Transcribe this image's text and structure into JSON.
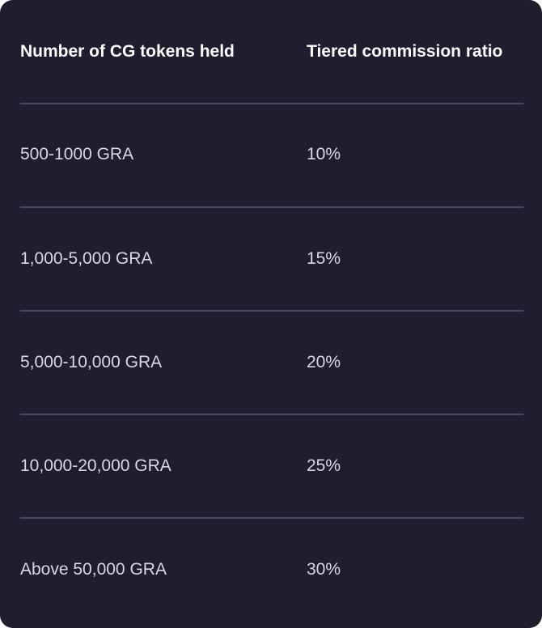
{
  "table": {
    "headers": {
      "tokens": "Number of CG tokens held",
      "ratio": "Tiered commission ratio"
    },
    "rows": [
      {
        "tokens": "500-1000 GRA",
        "ratio": "10%"
      },
      {
        "tokens": "1,000-5,000 GRA",
        "ratio": "15%"
      },
      {
        "tokens": "5,000-10,000 GRA",
        "ratio": "20%"
      },
      {
        "tokens": "10,000-20,000 GRA",
        "ratio": "25%"
      },
      {
        "tokens": "Above 50,000 GRA",
        "ratio": "30%"
      }
    ]
  },
  "colors": {
    "card_background": "#1f1d2e",
    "divider": "#4a4566",
    "header_text": "#ffffff",
    "body_text": "#d9d7e2"
  }
}
